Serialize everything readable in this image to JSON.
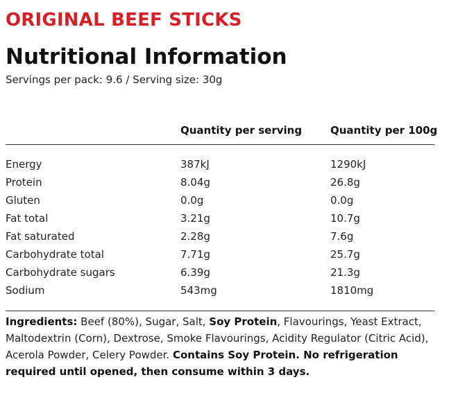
{
  "product_title": "ORIGINAL BEEF STICKS",
  "page_title": "Nutritional Information",
  "servings_line": "Servings per pack: 9.6 / Serving size: 30g",
  "table": {
    "headers": {
      "per_serving": "Quantity per serving",
      "per_100g": "Quantity per 100g"
    },
    "rows": [
      {
        "name": "Energy",
        "serving": "387kJ",
        "per100": "1290kJ"
      },
      {
        "name": "Protein",
        "serving": "8.04g",
        "per100": "26.8g"
      },
      {
        "name": "Gluten",
        "serving": "0.0g",
        "per100": "0.0g"
      },
      {
        "name": "Fat total",
        "serving": "3.21g",
        "per100": "10.7g"
      },
      {
        "name": "Fat saturated",
        "serving": "2.28g",
        "per100": "7.6g"
      },
      {
        "name": "Carbohydrate total",
        "serving": "7.71g",
        "per100": "25.7g"
      },
      {
        "name": "Carbohydrate sugars",
        "serving": "6.39g",
        "per100": "21.3g"
      },
      {
        "name": "Sodium",
        "serving": "543mg",
        "per100": "1810mg"
      }
    ]
  },
  "ingredients": {
    "label": "Ingredients:",
    "text_part1": " Beef (80%), Sugar, Salt, ",
    "bold_soy": "Soy Protein",
    "text_part2": ", Flavourings, Yeast Extract, Maltodextrin (Corn), Dextrose, Smoke Flavourings, Acidity Regulator (Citric Acid), Acerola Powder, Celery Powder. ",
    "contains": "Contains Soy Protein",
    "storage": ". No refrigeration required until opened, then consume within 3 days."
  },
  "colors": {
    "brand_red": "#d62027",
    "text": "#1a1a1a",
    "rule": "#333333"
  }
}
